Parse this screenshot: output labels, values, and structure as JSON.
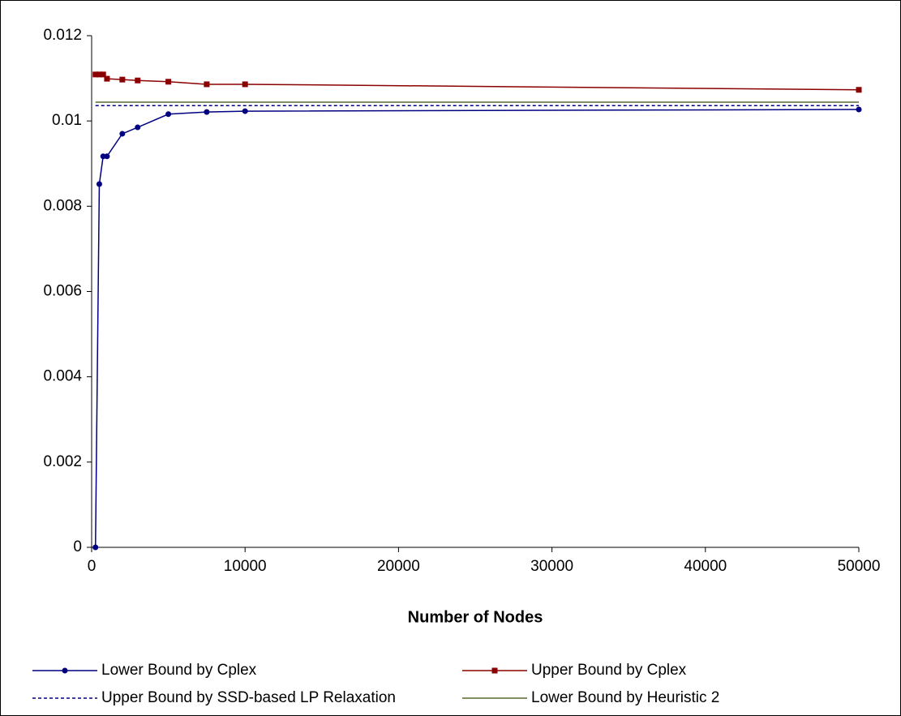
{
  "chart_data": {
    "type": "line",
    "xlabel": "Number of Nodes",
    "xlim": [
      0,
      50000
    ],
    "xticks": [
      0,
      10000,
      20000,
      30000,
      40000,
      50000
    ],
    "ylim": [
      0,
      0.012
    ],
    "yticks": [
      0,
      0.002,
      0.004,
      0.006,
      0.008,
      0.01,
      0.012
    ],
    "series": [
      {
        "name": "Lower Bound by Cplex",
        "color": "#000080",
        "marker": "circle",
        "dash": false,
        "x": [
          250,
          500,
          750,
          1000,
          2000,
          3000,
          5000,
          7500,
          10000,
          50000
        ],
        "values": [
          0,
          0.00852,
          0.00917,
          0.00917,
          0.0097,
          0.00985,
          0.01016,
          0.01021,
          0.01023,
          0.01027
        ]
      },
      {
        "name": "Upper Bound by Cplex",
        "color": "#8b0000",
        "marker": "square",
        "dash": false,
        "x": [
          250,
          500,
          750,
          1000,
          2000,
          3000,
          5000,
          7500,
          10000,
          50000
        ],
        "values": [
          0.01109,
          0.01109,
          0.01109,
          0.01099,
          0.01097,
          0.01095,
          0.01092,
          0.01086,
          0.01086,
          0.01073
        ]
      },
      {
        "name": "Upper Bound by SSD-based LP Relaxation",
        "color": "#000080",
        "marker": "none",
        "dash": true,
        "x": [
          250,
          50000
        ],
        "values": [
          0.01036,
          0.01036
        ]
      },
      {
        "name": "Lower Bound by Heuristic 2",
        "color": "#556b2f",
        "marker": "none",
        "dash": false,
        "x": [
          250,
          50000
        ],
        "values": [
          0.01044,
          0.01044
        ]
      }
    ]
  }
}
